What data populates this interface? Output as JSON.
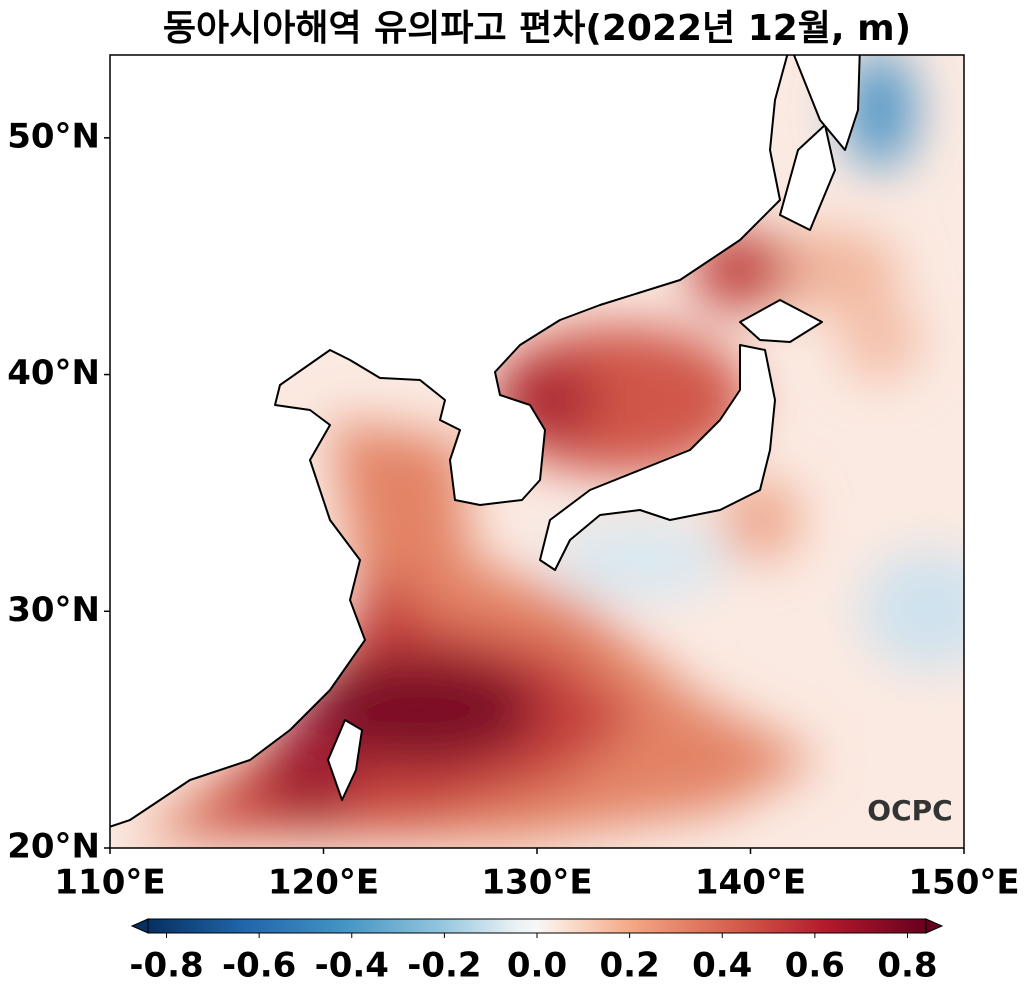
{
  "title": "동아시아해역 유의파고 편차(2022년 12월, m)",
  "map": {
    "xlim": [
      110,
      150
    ],
    "ylim": [
      20,
      53.5
    ],
    "xticks": [
      {
        "value": 110,
        "label": "110°E"
      },
      {
        "value": 120,
        "label": "120°E"
      },
      {
        "value": 130,
        "label": "130°E"
      },
      {
        "value": 140,
        "label": "140°E"
      },
      {
        "value": 150,
        "label": "150°E"
      }
    ],
    "yticks": [
      {
        "value": 20,
        "label": "20°N"
      },
      {
        "value": 30,
        "label": "30°N"
      },
      {
        "value": 40,
        "label": "40°N"
      },
      {
        "value": 50,
        "label": "50°N"
      }
    ]
  },
  "colorbar": {
    "clim": [
      -0.84,
      0.84
    ],
    "cmap": "RdBu_r",
    "ticks": [
      -0.8,
      -0.6,
      -0.4,
      -0.2,
      {
        "value": 0,
        "label": "0.0"
      },
      0.2,
      0.4,
      0.6,
      0.8
    ]
  },
  "logo": "OCPC"
}
